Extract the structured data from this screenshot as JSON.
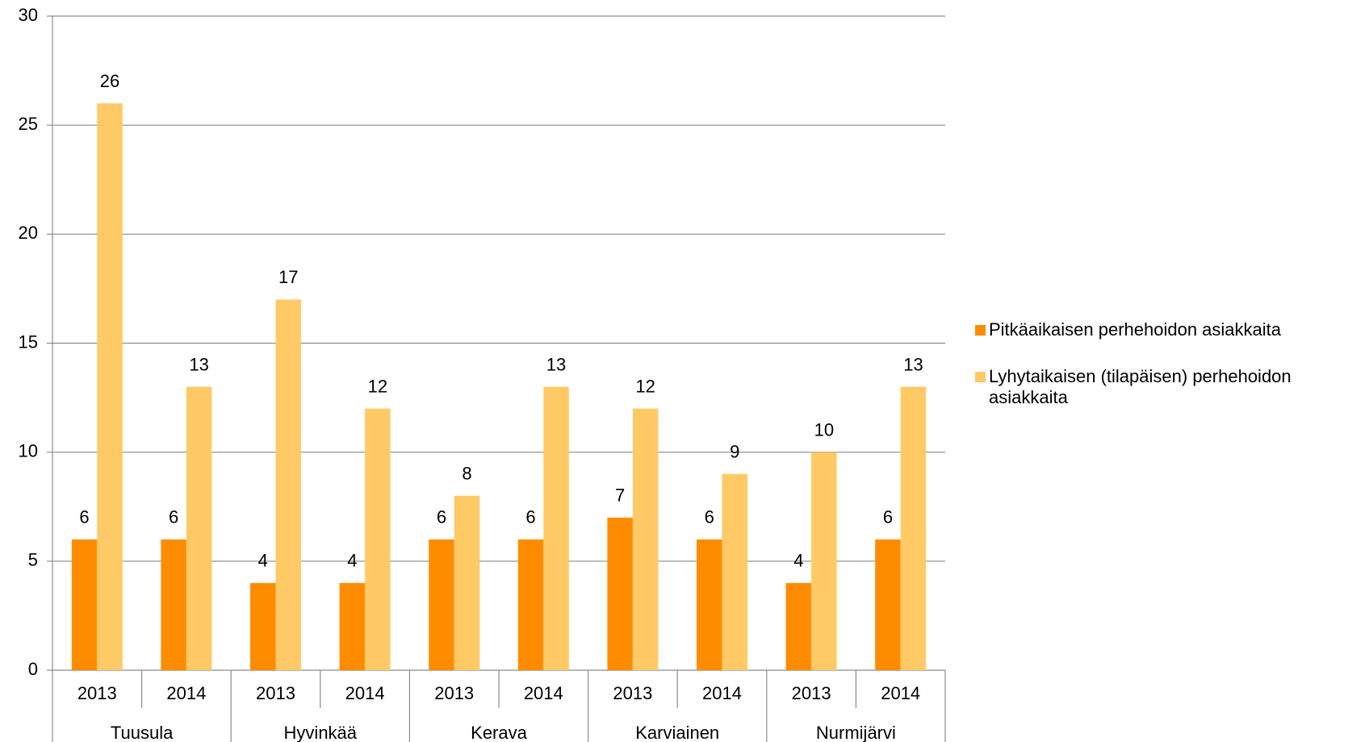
{
  "chart_data": {
    "type": "bar",
    "categories": [
      "2013",
      "2014",
      "2013",
      "2014",
      "2013",
      "2014",
      "2013",
      "2014",
      "2013",
      "2014"
    ],
    "groups": [
      "Tuusula",
      "Hyvinkää",
      "Kerava",
      "Karviainen",
      "Nurmijärvi"
    ],
    "series": [
      {
        "name": "Pitkäaikaisen perhehoidon asiakkaita",
        "color": "#ff8c00",
        "values": [
          6,
          6,
          4,
          4,
          6,
          6,
          7,
          6,
          4,
          6
        ]
      },
      {
        "name": "Lyhytaikaisen (tilapäisen) perhehoidon asiakkaita",
        "color": "#ffc966",
        "values": [
          26,
          13,
          17,
          12,
          8,
          13,
          12,
          9,
          10,
          13
        ]
      }
    ],
    "ylim": [
      0,
      30
    ],
    "yticks": [
      0,
      5,
      10,
      15,
      20,
      25,
      30
    ],
    "grid": true,
    "legend": "right"
  }
}
